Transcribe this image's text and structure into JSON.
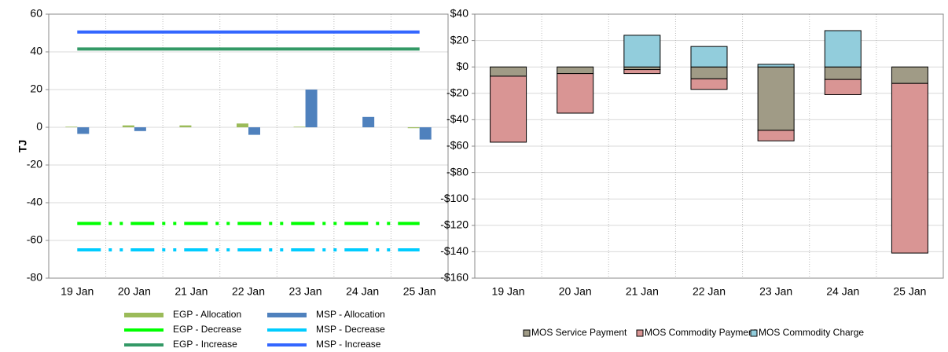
{
  "chart_data": [
    {
      "type": "combo",
      "ylabel": "TJ",
      "categories": [
        "19 Jan",
        "20 Jan",
        "21 Jan",
        "22 Jan",
        "23 Jan",
        "24 Jan",
        "25 Jan"
      ],
      "ylim": [
        -80,
        60
      ],
      "yticks": [
        -80,
        -60,
        -40,
        -20,
        0,
        20,
        40,
        60
      ],
      "grid": true,
      "series": [
        {
          "name": "EGP - Allocation",
          "type": "bar",
          "color": "#9bbb59",
          "values": [
            0.3,
            1,
            1,
            2,
            0.3,
            0,
            -0.5
          ]
        },
        {
          "name": "MSP - Allocation",
          "type": "bar",
          "color": "#4f81bd",
          "values": [
            -3.5,
            -2,
            0,
            -4,
            20,
            5.5,
            -6.5
          ]
        },
        {
          "name": "EGP - Decrease",
          "type": "line",
          "dashed": true,
          "color": "#00ff00",
          "values": [
            -51,
            -51,
            -51,
            -51,
            -51,
            -51,
            -51
          ]
        },
        {
          "name": "MSP - Decrease",
          "type": "line",
          "dashed": true,
          "color": "#00ccff",
          "values": [
            -65,
            -65,
            -65,
            -65,
            -65,
            -65,
            -65
          ]
        },
        {
          "name": "EGP - Increase",
          "type": "line",
          "dashed": false,
          "color": "#339966",
          "values": [
            41.5,
            41.5,
            41.5,
            41.5,
            41.5,
            41.5,
            41.5
          ]
        },
        {
          "name": "MSP - Increase",
          "type": "line",
          "dashed": false,
          "color": "#3366ff",
          "values": [
            50.5,
            50.5,
            50.5,
            50.5,
            50.5,
            50.5,
            50.5
          ]
        }
      ]
    },
    {
      "type": "stacked_bar",
      "categories": [
        "19 Jan",
        "20 Jan",
        "21 Jan",
        "22 Jan",
        "23 Jan",
        "24 Jan",
        "25 Jan"
      ],
      "ylim": [
        -160,
        40
      ],
      "yticks": [
        {
          "value": -160,
          "label": "-$160"
        },
        {
          "value": -140,
          "label": "-$140"
        },
        {
          "value": -120,
          "label": "-$120"
        },
        {
          "value": -100,
          "label": "-$100"
        },
        {
          "value": -80,
          "label": "-$80"
        },
        {
          "value": -60,
          "label": "-$60"
        },
        {
          "value": -40,
          "label": "-$40"
        },
        {
          "value": -20,
          "label": "-$20"
        },
        {
          "value": 0,
          "label": "$0"
        },
        {
          "value": 20,
          "label": "$20"
        },
        {
          "value": 40,
          "label": "$40"
        }
      ],
      "grid": true,
      "series": [
        {
          "name": "MOS Service Payment",
          "color": "#a09b86",
          "values": [
            -7,
            -5,
            -2,
            -9,
            -48,
            -9.5,
            -12.5
          ]
        },
        {
          "name": "MOS Commodity Payment",
          "color": "#d99594",
          "values": [
            -50,
            -30,
            -3,
            -8,
            -8,
            -11.5,
            -128.5
          ]
        },
        {
          "name": "MOS Commodity Charge",
          "color": "#92cddc",
          "values": [
            0,
            0,
            24,
            15.5,
            2,
            27.5,
            0
          ]
        }
      ]
    }
  ]
}
